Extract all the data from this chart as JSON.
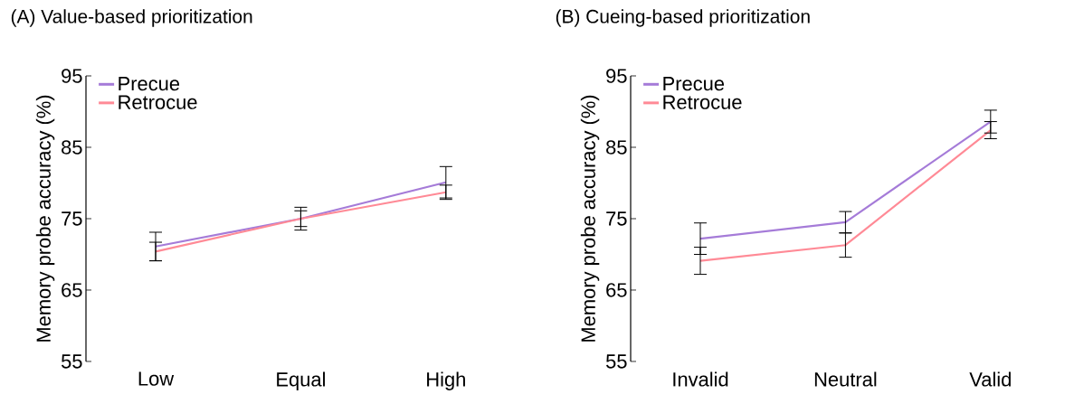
{
  "chart_data": [
    {
      "type": "line",
      "title": "(A) Value-based prioritization",
      "ylabel": "Memory probe accuracy (%)",
      "categories": [
        "Low",
        "Equal",
        "High"
      ],
      "ylim": [
        55,
        95
      ],
      "yticks": [
        55,
        65,
        75,
        85,
        95
      ],
      "legend": "top left",
      "grid": false,
      "marker": "none",
      "series": [
        {
          "name": "Precue",
          "color": "#a57bd8",
          "values": [
            71.1,
            75,
            80.1
          ],
          "errors": [
            2,
            1.6,
            2.2
          ]
        },
        {
          "name": "Retrocue",
          "color": "#ff8a96",
          "values": [
            70.4,
            75,
            78.7
          ],
          "errors": [
            1.3,
            1.1,
            1
          ]
        }
      ]
    },
    {
      "type": "line",
      "title": "(B) Cueing-based prioritization",
      "ylabel": "Memory probe accuracy (%)",
      "categories": [
        "Invalid",
        "Neutral",
        "Valid"
      ],
      "ylim": [
        55,
        95
      ],
      "yticks": [
        55,
        65,
        75,
        85,
        95
      ],
      "legend": "top left",
      "grid": false,
      "marker": "none",
      "series": [
        {
          "name": "Precue",
          "color": "#a57bd8",
          "values": [
            72.2,
            74.5,
            88.6
          ],
          "errors": [
            2.2,
            1.5,
            1.6
          ]
        },
        {
          "name": "Retrocue",
          "color": "#ff8a96",
          "values": [
            69.1,
            71.3,
            87.4
          ],
          "errors": [
            1.9,
            1.7,
            1.2
          ]
        }
      ]
    }
  ]
}
